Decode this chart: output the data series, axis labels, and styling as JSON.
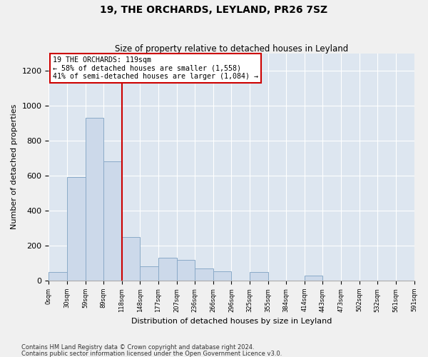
{
  "title": "19, THE ORCHARDS, LEYLAND, PR26 7SZ",
  "subtitle": "Size of property relative to detached houses in Leyland",
  "xlabel": "Distribution of detached houses by size in Leyland",
  "ylabel": "Number of detached properties",
  "footer_line1": "Contains HM Land Registry data © Crown copyright and database right 2024.",
  "footer_line2": "Contains public sector information licensed under the Open Government Licence v3.0.",
  "bar_color": "#ccd9ea",
  "bar_edge_color": "#8aaac8",
  "background_color": "#dde6f0",
  "grid_color": "#ffffff",
  "red_line_x": 4,
  "annotation_text": "19 THE ORCHARDS: 119sqm\n← 58% of detached houses are smaller (1,558)\n41% of semi-detached houses are larger (1,084) →",
  "annotation_box_color": "#ffffff",
  "annotation_border_color": "#cc0000",
  "bin_labels": [
    "0sqm",
    "30sqm",
    "59sqm",
    "89sqm",
    "118sqm",
    "148sqm",
    "177sqm",
    "207sqm",
    "236sqm",
    "266sqm",
    "296sqm",
    "325sqm",
    "355sqm",
    "384sqm",
    "414sqm",
    "443sqm",
    "473sqm",
    "502sqm",
    "532sqm",
    "561sqm",
    "591sqm"
  ],
  "bar_heights": [
    50,
    590,
    930,
    680,
    250,
    80,
    130,
    120,
    70,
    55,
    0,
    50,
    0,
    0,
    30,
    0,
    0,
    0,
    0,
    0
  ],
  "ylim": [
    0,
    1300
  ],
  "yticks": [
    0,
    200,
    400,
    600,
    800,
    1000,
    1200
  ],
  "num_bars": 20
}
